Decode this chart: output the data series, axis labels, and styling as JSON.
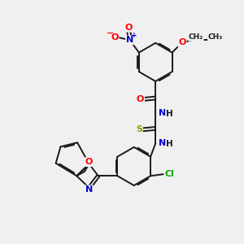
{
  "bg_color": "#f0f0f0",
  "bond_color": "#1a1a1a",
  "atom_colors": {
    "O": "#ff0000",
    "N": "#0000cc",
    "S": "#999900",
    "Cl": "#00aa00",
    "C": "#1a1a1a",
    "H": "#1a1a1a"
  },
  "figsize": [
    3.0,
    3.0
  ],
  "dpi": 100
}
